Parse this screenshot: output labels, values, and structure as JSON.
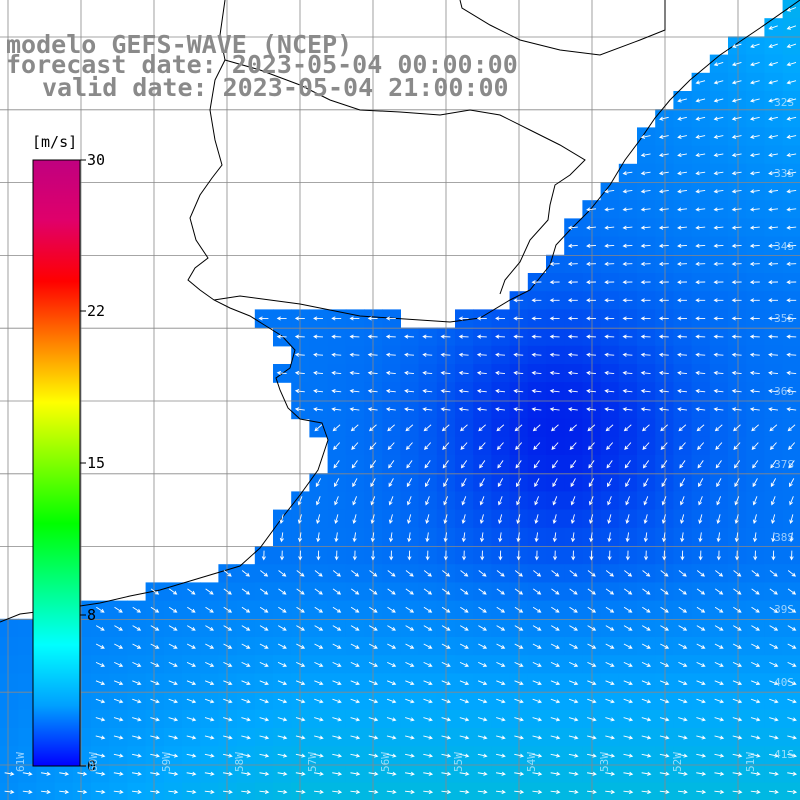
{
  "title": {
    "line1": "modelo GEFS-WAVE (NCEP)",
    "line2": "forecast date: 2023-05-04 00:00:00",
    "line3": "valid date: 2023-05-04 21:00:00"
  },
  "colorbar": {
    "unit": "[m/s]",
    "ticks": [
      "30",
      "22",
      "15",
      "8",
      "0"
    ],
    "colors": [
      "#0000ff",
      "#00a0ff",
      "#00ffff",
      "#00ff80",
      "#00ff00",
      "#80ff00",
      "#ffff00",
      "#ff8000",
      "#ff0000",
      "#e0006a",
      "#c00080"
    ]
  },
  "lat_labels": [
    "32S",
    "33S",
    "34S",
    "35S",
    "36S",
    "37S",
    "38S",
    "39S",
    "40S",
    "41S"
  ],
  "lon_labels": [
    "61W",
    "60W",
    "59W",
    "58W",
    "57W",
    "56W",
    "55W",
    "54W",
    "53W",
    "52W",
    "51W"
  ],
  "colors": {
    "ocean_low": "#0000e6",
    "ocean_mid": "#00a8ff",
    "ocean_high": "#00ff66",
    "land": "#ffffff",
    "coast": "#000000",
    "grid": "#888888",
    "vector": "#ffffff"
  }
}
